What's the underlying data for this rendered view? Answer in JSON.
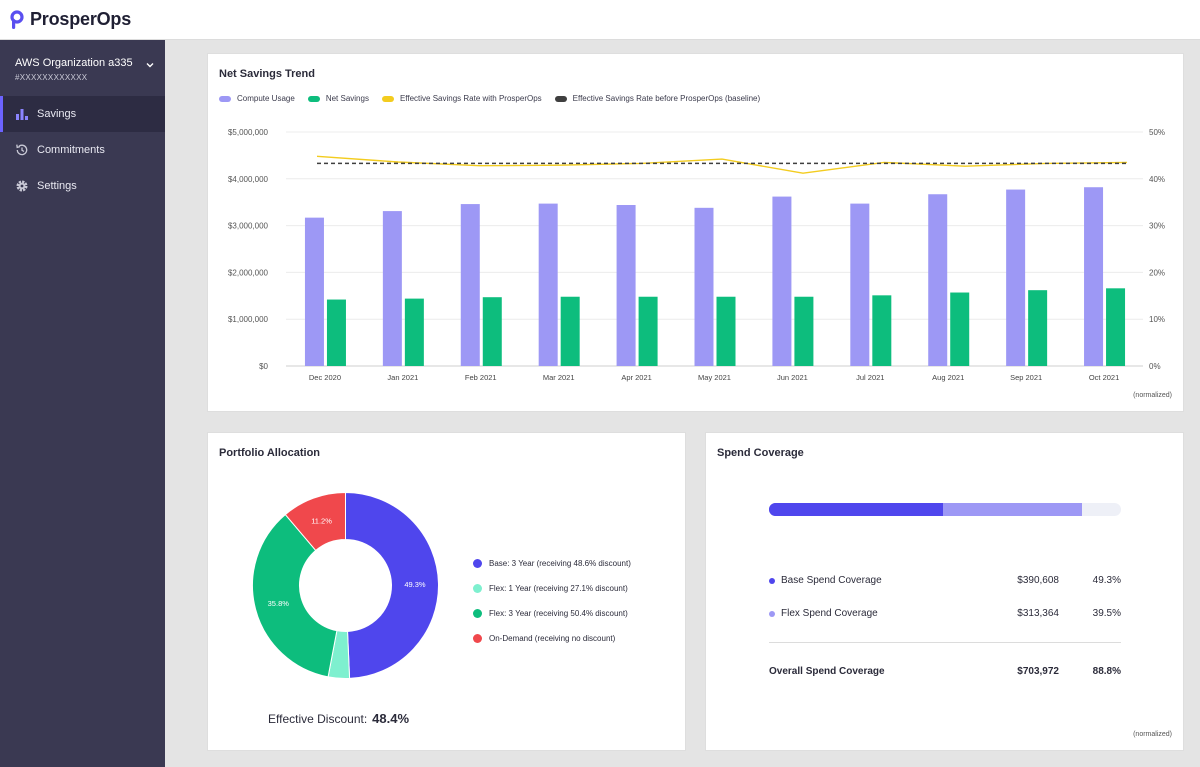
{
  "app": {
    "brand": "ProsperOps"
  },
  "colors": {
    "compute": "#9d98f5",
    "savings": "#0dbd7d",
    "effective_rate": "#f3cc1f",
    "baseline": "#3f3f3f",
    "base": "#4f46ed",
    "flex1": "#7ef0cf",
    "flex3": "#0dbd7d",
    "ondemand": "#f0484c",
    "flex_cov": "#9d98f5"
  },
  "sidebar": {
    "org_name": "AWS Organization a335",
    "org_id": "#XXXXXXXXXXXX",
    "items": [
      {
        "label": "Savings",
        "icon": "bar-chart-icon",
        "active": true
      },
      {
        "label": "Commitments",
        "icon": "clock-refresh-icon",
        "active": false
      },
      {
        "label": "Settings",
        "icon": "gear-icon",
        "active": false
      }
    ]
  },
  "trend": {
    "title": "Net Savings Trend",
    "legend": [
      "Compute Usage",
      "Net Savings",
      "Effective Savings Rate with ProsperOps",
      "Effective Savings Rate before ProsperOps (baseline)"
    ],
    "note": "(normalized)"
  },
  "chart_data": {
    "type": "bar",
    "title": "Net Savings Trend",
    "categories": [
      "Dec 2020",
      "Jan 2021",
      "Feb 2021",
      "Mar 2021",
      "Apr 2021",
      "May 2021",
      "Jun 2021",
      "Jul 2021",
      "Aug 2021",
      "Sep 2021",
      "Oct 2021"
    ],
    "series": [
      {
        "name": "Compute Usage",
        "type": "bar",
        "axis": "left",
        "values": [
          3170000,
          3310000,
          3460000,
          3470000,
          3440000,
          3380000,
          3620000,
          3470000,
          3670000,
          3770000,
          3820000
        ]
      },
      {
        "name": "Net Savings",
        "type": "bar",
        "axis": "left",
        "values": [
          1420000,
          1440000,
          1470000,
          1480000,
          1480000,
          1480000,
          1480000,
          1510000,
          1570000,
          1620000,
          1660000
        ]
      },
      {
        "name": "Effective Savings Rate with ProsperOps",
        "type": "line",
        "axis": "right",
        "values": [
          44.8,
          43.6,
          42.8,
          42.9,
          43.3,
          44.2,
          41.2,
          43.5,
          42.7,
          43.3,
          43.5
        ]
      },
      {
        "name": "Effective Savings Rate before ProsperOps (baseline)",
        "type": "line",
        "axis": "right",
        "dashed": true,
        "values": [
          43.3,
          43.3,
          43.3,
          43.3,
          43.3,
          43.3,
          43.3,
          43.3,
          43.3,
          43.3,
          43.3
        ]
      }
    ],
    "y_left": {
      "ylim": [
        0,
        5000000
      ],
      "ticks": [
        0,
        1000000,
        2000000,
        3000000,
        4000000,
        5000000
      ],
      "tick_labels": [
        "$0",
        "$1,000,000",
        "$2,000,000",
        "$3,000,000",
        "$4,000,000",
        "$5,000,000"
      ]
    },
    "y_right": {
      "ylim": [
        0,
        50
      ],
      "ticks": [
        0,
        10,
        20,
        30,
        40,
        50
      ],
      "tick_labels": [
        "0%",
        "10%",
        "20%",
        "30%",
        "40%",
        "50%"
      ]
    },
    "grid": true,
    "legend_position": "top-left"
  },
  "portfolio": {
    "title": "Portfolio Allocation",
    "slices": [
      {
        "key": "base",
        "label": "Base: 3 Year (receiving 48.6% discount)",
        "value": 49.3,
        "value_label": "49.3%"
      },
      {
        "key": "flex1",
        "label": "Flex: 1 Year (receiving 27.1% discount)",
        "value": 3.7,
        "value_label": ""
      },
      {
        "key": "flex3",
        "label": "Flex: 3 Year (receiving 50.4% discount)",
        "value": 35.8,
        "value_label": "35.8%"
      },
      {
        "key": "ondemand",
        "label": "On-Demand (receiving no discount)",
        "value": 11.2,
        "value_label": "11.2%"
      }
    ],
    "effective_label": "Effective Discount:",
    "effective_value": "48.4%"
  },
  "coverage": {
    "title": "Spend Coverage",
    "base_fraction": 0.493,
    "flex_fraction": 0.395,
    "rows": [
      {
        "label": "Base Spend Coverage",
        "amount": "$390,608",
        "pct": "49.3%"
      },
      {
        "label": "Flex Spend Coverage",
        "amount": "$313,364",
        "pct": "39.5%"
      }
    ],
    "total": {
      "label": "Overall Spend Coverage",
      "amount": "$703,972",
      "pct": "88.8%"
    },
    "note": "(normalized)"
  }
}
